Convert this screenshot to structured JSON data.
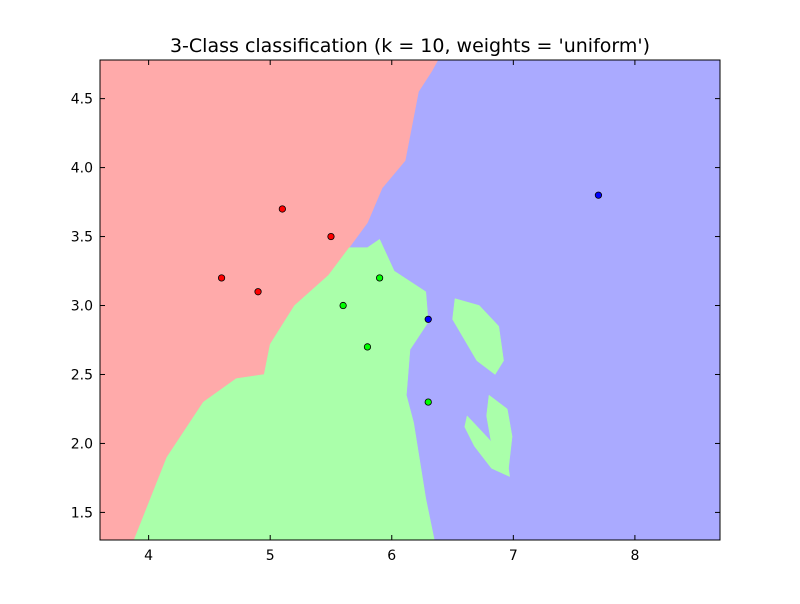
{
  "chart_data": {
    "type": "scatter",
    "title": "3-Class classification (k = 10, weights = 'uniform')",
    "xlabel": "",
    "ylabel": "",
    "xlim": [
      3.6,
      8.7
    ],
    "ylim": [
      1.3,
      4.78
    ],
    "xticks": [
      4,
      5,
      6,
      7,
      8
    ],
    "xtick_labels": [
      "4",
      "5",
      "6",
      "7",
      "8"
    ],
    "yticks": [
      1.5,
      2.0,
      2.5,
      3.0,
      3.5,
      4.0,
      4.5
    ],
    "ytick_labels": [
      "1.5",
      "2.0",
      "2.5",
      "3.0",
      "3.5",
      "4.0",
      "4.5"
    ],
    "grid": false,
    "legend": "none",
    "background_regions": [
      {
        "class": 0,
        "color": "#FFAAAA",
        "boundary": [
          [
            3.6,
            4.78
          ],
          [
            6.38,
            4.78
          ],
          [
            6.33,
            4.7
          ],
          [
            6.22,
            4.55
          ],
          [
            6.11,
            4.05
          ],
          [
            5.92,
            3.85
          ],
          [
            5.8,
            3.6
          ],
          [
            5.65,
            3.42
          ],
          [
            5.48,
            3.22
          ],
          [
            5.2,
            3.0
          ],
          [
            5.0,
            2.72
          ],
          [
            4.95,
            2.5
          ],
          [
            4.72,
            2.47
          ],
          [
            4.45,
            2.3
          ],
          [
            4.15,
            1.9
          ],
          [
            3.88,
            1.3
          ],
          [
            3.6,
            1.3
          ]
        ]
      },
      {
        "class": 1,
        "color": "#AAFFAA",
        "boundary": [
          [
            3.88,
            1.3
          ],
          [
            4.15,
            1.9
          ],
          [
            4.45,
            2.3
          ],
          [
            4.72,
            2.47
          ],
          [
            4.95,
            2.5
          ],
          [
            5.0,
            2.72
          ],
          [
            5.2,
            3.0
          ],
          [
            5.48,
            3.22
          ],
          [
            5.65,
            3.42
          ],
          [
            5.8,
            3.42
          ],
          [
            5.9,
            3.48
          ],
          [
            6.02,
            3.25
          ],
          [
            6.28,
            3.1
          ],
          [
            6.3,
            2.88
          ],
          [
            6.15,
            2.68
          ],
          [
            6.12,
            2.35
          ],
          [
            6.18,
            2.15
          ],
          [
            6.28,
            1.6
          ],
          [
            6.35,
            1.3
          ]
        ]
      },
      {
        "class": 1,
        "color": "#AAFFAA",
        "boundary": [
          [
            6.52,
            3.05
          ],
          [
            6.72,
            3.0
          ],
          [
            6.88,
            2.85
          ],
          [
            6.92,
            2.6
          ],
          [
            6.85,
            2.5
          ],
          [
            6.7,
            2.6
          ],
          [
            6.6,
            2.75
          ],
          [
            6.5,
            2.9
          ]
        ]
      },
      {
        "class": 1,
        "color": "#AAFFAA",
        "boundary": [
          [
            6.8,
            2.35
          ],
          [
            6.95,
            2.25
          ],
          [
            6.99,
            2.05
          ],
          [
            6.96,
            1.82
          ],
          [
            6.92,
            1.78
          ],
          [
            6.82,
            2.0
          ],
          [
            6.78,
            2.2
          ]
        ]
      },
      {
        "class": 1,
        "color": "#AAFFAA",
        "boundary": [
          [
            6.62,
            2.2
          ],
          [
            6.78,
            2.05
          ],
          [
            6.95,
            1.88
          ],
          [
            6.97,
            1.76
          ],
          [
            6.82,
            1.82
          ],
          [
            6.68,
            1.98
          ],
          [
            6.6,
            2.12
          ]
        ]
      }
    ],
    "background_default": {
      "class": 2,
      "color": "#AAAAFF"
    },
    "series": [
      {
        "class": 0,
        "color": "#FF0000",
        "points": [
          [
            4.6,
            3.2
          ],
          [
            4.9,
            3.1
          ],
          [
            5.1,
            3.7
          ],
          [
            5.5,
            3.5
          ]
        ]
      },
      {
        "class": 1,
        "color": "#00FF00",
        "points": [
          [
            5.6,
            3.0
          ],
          [
            5.9,
            3.2
          ],
          [
            5.8,
            2.7
          ],
          [
            6.3,
            2.3
          ]
        ]
      },
      {
        "class": 2,
        "color": "#0000FF",
        "points": [
          [
            6.3,
            2.9
          ],
          [
            7.7,
            3.8
          ]
        ]
      }
    ]
  }
}
